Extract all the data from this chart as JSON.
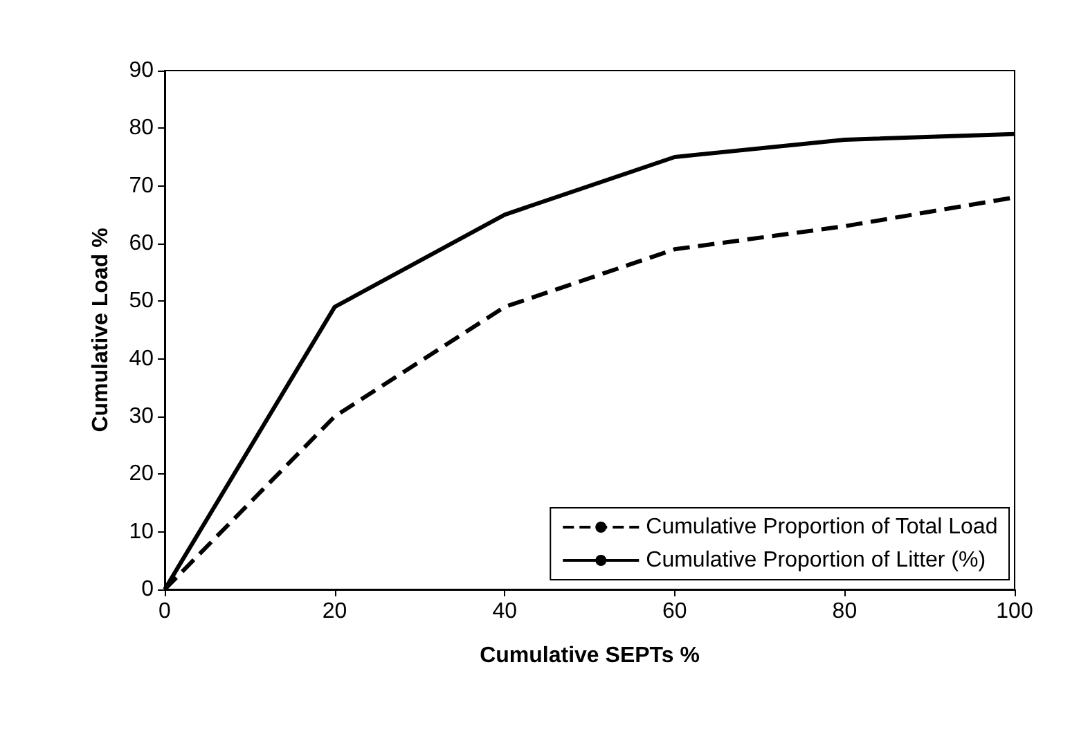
{
  "chart_data": {
    "type": "line",
    "xlabel": "Cumulative SEPTs %",
    "ylabel": "Cumulative Load %",
    "x": [
      0,
      20,
      40,
      60,
      80,
      100
    ],
    "series": [
      {
        "name": "Cumulative Proportion of Total Load",
        "color": "#000000",
        "line_style": "dashed",
        "values": [
          0,
          30,
          49,
          59,
          63,
          68
        ]
      },
      {
        "name": "Cumulative Proportion of Litter (%)",
        "color": "#000000",
        "line_style": "solid",
        "values": [
          0,
          49,
          65,
          75,
          78,
          79
        ]
      }
    ],
    "xlim": [
      0,
      100
    ],
    "xticks": [
      0,
      20,
      40,
      60,
      80,
      100
    ],
    "ylim": [
      0,
      90
    ],
    "yticks": [
      0,
      10,
      20,
      30,
      40,
      50,
      60,
      70,
      80,
      90
    ],
    "grid": false,
    "legend": "bottom right",
    "marker": "none"
  }
}
